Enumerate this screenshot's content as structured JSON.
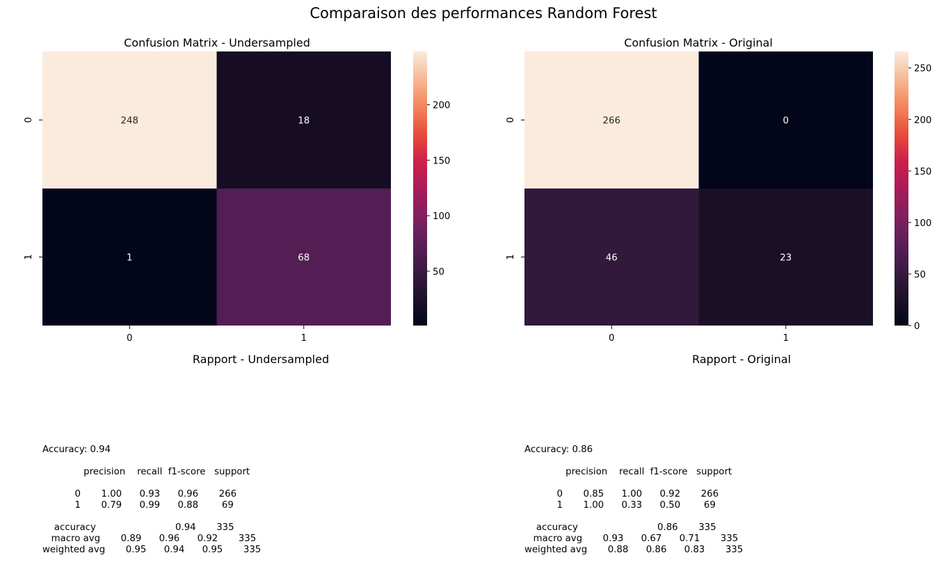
{
  "figure_title": "Comparaison des performances Random Forest",
  "chart_data": [
    {
      "type": "heatmap",
      "title": "Confusion Matrix - Undersampled",
      "row_labels": [
        "0",
        "1"
      ],
      "col_labels": [
        "0",
        "1"
      ],
      "values": [
        [
          248,
          18
        ],
        [
          1,
          68
        ]
      ],
      "colorbar": {
        "min": 1,
        "max": 248,
        "ticks": [
          50,
          100,
          150,
          200
        ]
      },
      "colormap": "rocket"
    },
    {
      "type": "heatmap",
      "title": "Confusion Matrix - Original",
      "row_labels": [
        "0",
        "1"
      ],
      "col_labels": [
        "0",
        "1"
      ],
      "values": [
        [
          266,
          0
        ],
        [
          46,
          23
        ]
      ],
      "colorbar": {
        "min": 0,
        "max": 266,
        "ticks": [
          0,
          50,
          100,
          150,
          200,
          250
        ]
      },
      "colormap": "rocket"
    }
  ],
  "reports": [
    {
      "title": "Rapport - Undersampled",
      "text": "Accuracy: 0.94\n\n              precision    recall  f1-score   support\n\n           0       1.00      0.93      0.96       266\n           1       0.79      0.99      0.88        69\n\n    accuracy                           0.94       335\n   macro avg       0.89      0.96      0.92       335\nweighted avg       0.95      0.94      0.95       335"
    },
    {
      "title": "Rapport - Original",
      "text": "Accuracy: 0.86\n\n              precision    recall  f1-score   support\n\n           0       0.85      1.00      0.92       266\n           1       1.00      0.33      0.50        69\n\n    accuracy                           0.86       335\n   macro avg       0.93      0.67      0.71       335\nweighted avg       0.88      0.86      0.83       335"
    }
  ]
}
